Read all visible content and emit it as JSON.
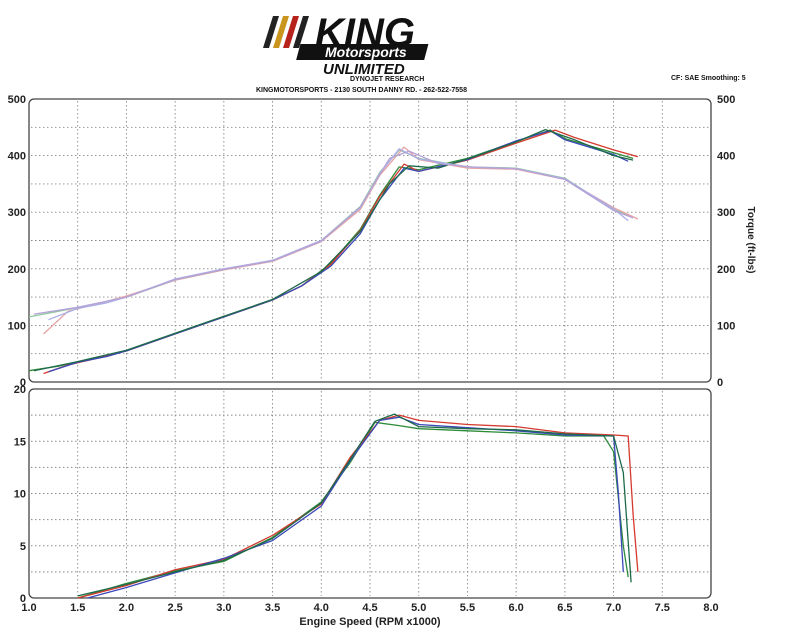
{
  "header": {
    "logo_king": "KING",
    "logo_motorsports": "Motorsports",
    "logo_unlimited": "UNLIMITED",
    "research": "DYNOJET RESEARCH",
    "address": "KINGMOTORSPORTS - 2130 SOUTH DANNY RD. - 262-522-7558",
    "cf_smoothing": "CF: SAE  Smoothing: 5"
  },
  "chart_data": [
    {
      "type": "line",
      "panel": "top",
      "xlabel": "",
      "ylabel_right": "Torque (ft-lbs)",
      "xlim": [
        1.0,
        8.0
      ],
      "ylim": [
        0,
        500
      ],
      "yticks": [
        0,
        100,
        200,
        300,
        400,
        500
      ],
      "grid": true,
      "series": [
        {
          "group": "hp",
          "color": "#2e8b3a",
          "points": [
            [
              1.0,
              20
            ],
            [
              1.3,
              28
            ],
            [
              1.6,
              40
            ],
            [
              2.0,
              55
            ],
            [
              2.5,
              85
            ],
            [
              3.0,
              115
            ],
            [
              3.5,
              145
            ],
            [
              3.8,
              170
            ],
            [
              4.1,
              210
            ],
            [
              4.4,
              270
            ],
            [
              4.6,
              330
            ],
            [
              4.8,
              380
            ],
            [
              5.0,
              375
            ],
            [
              5.5,
              395
            ],
            [
              6.0,
              425
            ],
            [
              6.35,
              445
            ],
            [
              6.5,
              430
            ],
            [
              7.0,
              405
            ],
            [
              7.2,
              395
            ]
          ]
        },
        {
          "group": "hp",
          "color": "#d43a2f",
          "points": [
            [
              1.15,
              15
            ],
            [
              1.4,
              30
            ],
            [
              1.7,
              42
            ],
            [
              2.0,
              55
            ],
            [
              2.5,
              85
            ],
            [
              3.0,
              115
            ],
            [
              3.5,
              145
            ],
            [
              3.8,
              170
            ],
            [
              4.1,
              208
            ],
            [
              4.4,
              268
            ],
            [
              4.6,
              328
            ],
            [
              4.85,
              385
            ],
            [
              5.0,
              372
            ],
            [
              5.5,
              392
            ],
            [
              6.0,
              422
            ],
            [
              6.4,
              445
            ],
            [
              6.6,
              432
            ],
            [
              7.0,
              410
            ],
            [
              7.25,
              398
            ]
          ]
        },
        {
          "group": "hp",
          "color": "#3a48b8",
          "points": [
            [
              1.2,
              18
            ],
            [
              1.5,
              35
            ],
            [
              1.8,
              45
            ],
            [
              2.0,
              55
            ],
            [
              2.5,
              85
            ],
            [
              3.0,
              115
            ],
            [
              3.5,
              145
            ],
            [
              3.8,
              170
            ],
            [
              4.1,
              205
            ],
            [
              4.4,
              262
            ],
            [
              4.6,
              322
            ],
            [
              4.85,
              378
            ],
            [
              5.0,
              372
            ],
            [
              5.5,
              393
            ],
            [
              6.0,
              426
            ],
            [
              6.35,
              444
            ],
            [
              6.5,
              428
            ],
            [
              7.0,
              402
            ],
            [
              7.15,
              390
            ]
          ]
        },
        {
          "group": "hp",
          "color": "#1d6a4a",
          "points": [
            [
              1.05,
              20
            ],
            [
              1.5,
              36
            ],
            [
              2.0,
              56
            ],
            [
              2.5,
              86
            ],
            [
              3.0,
              116
            ],
            [
              3.5,
              146
            ],
            [
              4.0,
              195
            ],
            [
              4.4,
              266
            ],
            [
              4.7,
              350
            ],
            [
              4.9,
              382
            ],
            [
              5.2,
              378
            ],
            [
              5.6,
              400
            ],
            [
              6.0,
              424
            ],
            [
              6.3,
              446
            ],
            [
              6.6,
              428
            ],
            [
              7.0,
              400
            ],
            [
              7.2,
              392
            ]
          ]
        },
        {
          "group": "tq",
          "color": "#8fc7a0",
          "points": [
            [
              1.0,
              115
            ],
            [
              1.3,
              125
            ],
            [
              1.6,
              135
            ],
            [
              2.0,
              150
            ],
            [
              2.5,
              180
            ],
            [
              3.0,
              198
            ],
            [
              3.5,
              215
            ],
            [
              4.0,
              250
            ],
            [
              4.4,
              310
            ],
            [
              4.6,
              370
            ],
            [
              4.8,
              410
            ],
            [
              5.0,
              395
            ],
            [
              5.5,
              380
            ],
            [
              6.0,
              378
            ],
            [
              6.5,
              360
            ],
            [
              7.0,
              305
            ],
            [
              7.2,
              292
            ]
          ]
        },
        {
          "group": "tq",
          "color": "#e6a3a3",
          "points": [
            [
              1.15,
              85
            ],
            [
              1.4,
              125
            ],
            [
              1.7,
              138
            ],
            [
              2.0,
              152
            ],
            [
              2.5,
              180
            ],
            [
              3.0,
              198
            ],
            [
              3.5,
              213
            ],
            [
              4.0,
              248
            ],
            [
              4.4,
              305
            ],
            [
              4.6,
              365
            ],
            [
              4.85,
              415
            ],
            [
              5.0,
              393
            ],
            [
              5.5,
              378
            ],
            [
              6.0,
              376
            ],
            [
              6.5,
              358
            ],
            [
              7.0,
              308
            ],
            [
              7.25,
              288
            ]
          ]
        },
        {
          "group": "tq",
          "color": "#a9aee8",
          "points": [
            [
              1.2,
              110
            ],
            [
              1.5,
              130
            ],
            [
              1.8,
              140
            ],
            [
              2.0,
              150
            ],
            [
              2.5,
              182
            ],
            [
              3.0,
              200
            ],
            [
              3.5,
              215
            ],
            [
              4.0,
              250
            ],
            [
              4.4,
              308
            ],
            [
              4.6,
              368
            ],
            [
              4.8,
              412
            ],
            [
              5.0,
              394
            ],
            [
              5.5,
              380
            ],
            [
              6.0,
              377
            ],
            [
              6.5,
              359
            ],
            [
              7.0,
              306
            ],
            [
              7.15,
              285
            ]
          ]
        },
        {
          "group": "tq",
          "color": "#b5a3d9",
          "points": [
            [
              1.05,
              120
            ],
            [
              1.5,
              132
            ],
            [
              2.0,
              150
            ],
            [
              2.5,
              181
            ],
            [
              3.0,
              199
            ],
            [
              3.5,
              214
            ],
            [
              4.0,
              249
            ],
            [
              4.4,
              309
            ],
            [
              4.7,
              395
            ],
            [
              4.9,
              408
            ],
            [
              5.2,
              386
            ],
            [
              5.6,
              379
            ],
            [
              6.0,
              377
            ],
            [
              6.5,
              358
            ],
            [
              7.0,
              303
            ],
            [
              7.2,
              290
            ]
          ]
        }
      ]
    },
    {
      "type": "line",
      "panel": "bottom",
      "xlabel": "Engine Speed (RPM x1000)",
      "xlim": [
        1.0,
        8.0
      ],
      "xticks": [
        1.0,
        1.5,
        2.0,
        2.5,
        3.0,
        3.5,
        4.0,
        4.5,
        5.0,
        5.5,
        6.0,
        6.5,
        7.0,
        7.5,
        8.0
      ],
      "ylim": [
        0,
        20
      ],
      "yticks": [
        0,
        5,
        10,
        15,
        20
      ],
      "grid": true,
      "series": [
        {
          "color": "#2e8b3a",
          "points": [
            [
              1.5,
              0
            ],
            [
              2.0,
              1.4
            ],
            [
              2.5,
              2.6
            ],
            [
              3.0,
              3.5
            ],
            [
              3.5,
              5.8
            ],
            [
              4.0,
              9.2
            ],
            [
              4.3,
              13.0
            ],
            [
              4.55,
              16.8
            ],
            [
              4.8,
              16.5
            ],
            [
              5.0,
              16.2
            ],
            [
              5.5,
              16.0
            ],
            [
              6.0,
              15.8
            ],
            [
              6.5,
              15.5
            ],
            [
              6.9,
              15.5
            ],
            [
              7.0,
              14.0
            ],
            [
              7.1,
              5.0
            ],
            [
              7.15,
              2.0
            ]
          ]
        },
        {
          "color": "#d43a2f",
          "points": [
            [
              1.5,
              0
            ],
            [
              2.0,
              1.2
            ],
            [
              2.5,
              2.7
            ],
            [
              3.0,
              3.7
            ],
            [
              3.5,
              6.0
            ],
            [
              4.0,
              9.0
            ],
            [
              4.3,
              13.5
            ],
            [
              4.6,
              17.0
            ],
            [
              4.8,
              17.5
            ],
            [
              5.0,
              17.0
            ],
            [
              5.5,
              16.6
            ],
            [
              6.0,
              16.4
            ],
            [
              6.5,
              15.8
            ],
            [
              7.0,
              15.6
            ],
            [
              7.15,
              15.5
            ],
            [
              7.2,
              8.0
            ],
            [
              7.25,
              2.5
            ]
          ]
        },
        {
          "color": "#3a48b8",
          "points": [
            [
              1.6,
              0
            ],
            [
              2.0,
              1.0
            ],
            [
              2.5,
              2.4
            ],
            [
              3.0,
              3.8
            ],
            [
              3.5,
              5.5
            ],
            [
              4.0,
              8.8
            ],
            [
              4.3,
              13.2
            ],
            [
              4.6,
              17.0
            ],
            [
              4.8,
              17.3
            ],
            [
              5.0,
              16.6
            ],
            [
              5.5,
              16.3
            ],
            [
              6.0,
              16.0
            ],
            [
              6.5,
              15.6
            ],
            [
              7.0,
              15.5
            ],
            [
              7.05,
              10.0
            ],
            [
              7.1,
              2.5
            ]
          ]
        },
        {
          "color": "#1d6a4a",
          "points": [
            [
              1.5,
              0.2
            ],
            [
              2.0,
              1.3
            ],
            [
              2.5,
              2.5
            ],
            [
              3.0,
              3.6
            ],
            [
              3.5,
              5.7
            ],
            [
              4.0,
              9.1
            ],
            [
              4.3,
              13.3
            ],
            [
              4.55,
              16.9
            ],
            [
              4.75,
              17.6
            ],
            [
              5.0,
              16.4
            ],
            [
              5.5,
              16.2
            ],
            [
              6.0,
              16.1
            ],
            [
              6.5,
              15.7
            ],
            [
              7.0,
              15.5
            ],
            [
              7.1,
              12.0
            ],
            [
              7.18,
              1.5
            ]
          ]
        }
      ]
    }
  ]
}
